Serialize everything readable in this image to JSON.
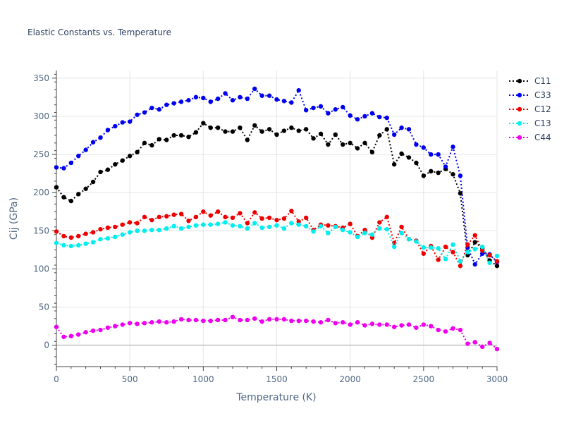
{
  "chart_data": {
    "type": "line",
    "title": "Elastic Constants vs. Temperature",
    "xlabel": "Temperature (K)",
    "ylabel": "Cij (GPa)",
    "xlim": [
      0,
      3000
    ],
    "ylim": [
      -28,
      360
    ],
    "x_ticks": [
      0,
      500,
      1000,
      1500,
      2000,
      2500,
      3000
    ],
    "x_tick_labels": [
      "0",
      "500",
      "1000",
      "1500",
      "2000",
      "2500",
      "3000"
    ],
    "y_ticks": [
      0,
      50,
      100,
      150,
      200,
      250,
      300,
      350
    ],
    "y_tick_labels": [
      "0",
      "50",
      "100",
      "150",
      "200",
      "250",
      "300",
      "350"
    ],
    "grid": true,
    "legend_position": "top-right",
    "line_style": "dotted",
    "marker": "circle",
    "x": [
      0,
      50,
      100,
      150,
      200,
      250,
      300,
      350,
      400,
      450,
      500,
      550,
      600,
      650,
      700,
      750,
      800,
      850,
      900,
      950,
      1000,
      1050,
      1100,
      1150,
      1200,
      1250,
      1300,
      1350,
      1400,
      1450,
      1500,
      1550,
      1600,
      1650,
      1700,
      1750,
      1800,
      1850,
      1900,
      1950,
      2000,
      2050,
      2100,
      2150,
      2200,
      2250,
      2300,
      2350,
      2400,
      2450,
      2500,
      2550,
      2600,
      2650,
      2700,
      2750,
      2800,
      2850,
      2900,
      2950,
      3000
    ],
    "series": [
      {
        "name": "C11",
        "color": "#000000",
        "values": [
          207,
          194,
          189,
          198,
          205,
          214,
          227,
          230,
          237,
          242,
          248,
          253,
          265,
          262,
          270,
          269,
          275,
          275,
          273,
          279,
          291,
          285,
          285,
          280,
          280,
          285,
          269,
          288,
          280,
          283,
          276,
          281,
          285,
          281,
          283,
          271,
          277,
          263,
          276,
          263,
          265,
          258,
          265,
          253,
          275,
          283,
          237,
          251,
          246,
          239,
          222,
          228,
          226,
          231,
          224,
          199,
          118,
          135,
          127,
          111,
          104
        ]
      },
      {
        "name": "C33",
        "color": "#0000ee",
        "values": [
          233,
          232,
          239,
          248,
          256,
          266,
          272,
          282,
          287,
          292,
          293,
          302,
          305,
          311,
          309,
          315,
          317,
          319,
          321,
          325,
          324,
          319,
          323,
          330,
          321,
          325,
          323,
          336,
          327,
          327,
          322,
          320,
          318,
          334,
          308,
          311,
          313,
          304,
          309,
          312,
          301,
          296,
          300,
          304,
          299,
          298,
          276,
          285,
          283,
          263,
          259,
          250,
          250,
          234,
          260,
          222,
          128,
          106,
          120,
          119,
          109
        ]
      },
      {
        "name": "C12",
        "color": "#ee0000",
        "values": [
          149,
          143,
          141,
          143,
          146,
          148,
          152,
          154,
          155,
          158,
          161,
          160,
          168,
          164,
          168,
          169,
          171,
          172,
          163,
          168,
          175,
          170,
          175,
          168,
          167,
          173,
          160,
          174,
          166,
          167,
          164,
          166,
          176,
          162,
          167,
          151,
          158,
          157,
          156,
          154,
          159,
          143,
          151,
          141,
          161,
          168,
          134,
          155,
          139,
          137,
          120,
          130,
          112,
          129,
          122,
          104,
          132,
          144,
          124,
          118,
          110
        ]
      },
      {
        "name": "C13",
        "color": "#00eeee",
        "values": [
          134,
          131,
          130,
          131,
          133,
          135,
          139,
          140,
          142,
          145,
          148,
          150,
          150,
          151,
          151,
          153,
          156,
          153,
          155,
          157,
          158,
          158,
          159,
          161,
          157,
          156,
          153,
          160,
          154,
          155,
          157,
          153,
          160,
          158,
          156,
          149,
          156,
          147,
          155,
          151,
          148,
          142,
          147,
          145,
          153,
          152,
          129,
          147,
          139,
          136,
          128,
          128,
          127,
          113,
          132,
          110,
          122,
          126,
          129,
          108,
          117
        ]
      },
      {
        "name": "C44",
        "color": "#ee00ee",
        "values": [
          24,
          11,
          12,
          14,
          17,
          19,
          20,
          23,
          25,
          27,
          29,
          28,
          29,
          30,
          31,
          30,
          31,
          34,
          33,
          33,
          32,
          32,
          33,
          33,
          37,
          33,
          33,
          35,
          31,
          34,
          34,
          34,
          32,
          32,
          32,
          31,
          30,
          33,
          29,
          30,
          27,
          30,
          26,
          28,
          27,
          27,
          24,
          26,
          27,
          23,
          27,
          25,
          20,
          18,
          22,
          20,
          2,
          4,
          -2,
          3,
          -5
        ]
      }
    ]
  }
}
